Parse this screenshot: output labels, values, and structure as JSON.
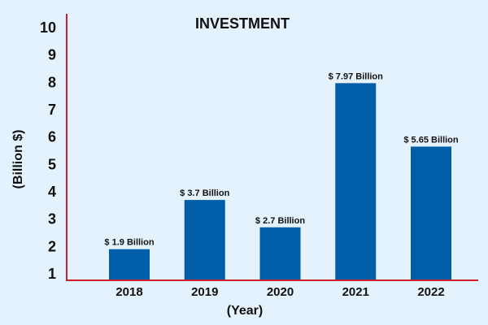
{
  "colors": {
    "background": "#e3f2fc",
    "bar": "#005ea8",
    "axis": "#d11f2a",
    "text": "#111111"
  },
  "chart_data": {
    "type": "bar",
    "title": "INVESTMENT",
    "xlabel": "(Year)",
    "ylabel": "(Billion $)",
    "ylim": [
      1,
      10
    ],
    "yticks": [
      "1",
      "2",
      "3",
      "4",
      "5",
      "6",
      "7",
      "8",
      "9",
      "10"
    ],
    "grid": false,
    "categories": [
      "2018",
      "2019",
      "2020",
      "2021",
      "2022"
    ],
    "values": [
      1.9,
      3.7,
      2.7,
      7.97,
      5.65
    ],
    "data_labels": [
      "$ 1.9 Billion",
      "$ 3.7 Billion",
      "$ 2.7 Billion",
      "$ 7.97 Billion",
      "$ 5.65 Billion"
    ]
  }
}
